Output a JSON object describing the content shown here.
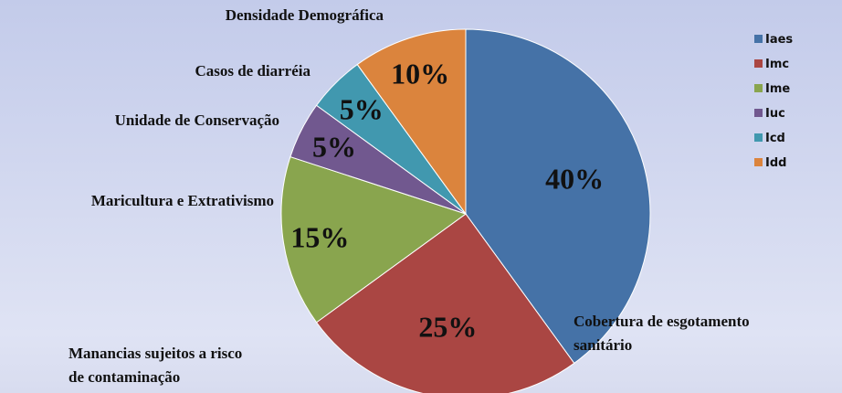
{
  "chart_data": {
    "type": "pie",
    "series": [
      {
        "name": "Iaes",
        "label": [
          "Cobertura de esgotamento",
          "sanitário"
        ],
        "color": "#4572a7",
        "value": 40,
        "value_label": "40%"
      },
      {
        "name": "Imc",
        "label": [
          "Manancias sujeitos a risco",
          "de contaminação"
        ],
        "color": "#aa4643",
        "value": 25,
        "value_label": "25%"
      },
      {
        "name": "Ime",
        "label": [
          "Maricultura e Extrativismo"
        ],
        "color": "#89a54e",
        "value": 15,
        "value_label": "15%"
      },
      {
        "name": "Iuc",
        "label": [
          "Unidade de Conservação"
        ],
        "color": "#71588f",
        "value": 5,
        "value_label": "5%"
      },
      {
        "name": "Icd",
        "label": [
          "Casos de diarréia"
        ],
        "color": "#4198af",
        "value": 5,
        "value_label": "5%"
      },
      {
        "name": "Idd",
        "label": [
          "Densidade Demográfica"
        ],
        "color": "#db843d",
        "value": 10,
        "value_label": "10%"
      }
    ],
    "legend": "right"
  }
}
